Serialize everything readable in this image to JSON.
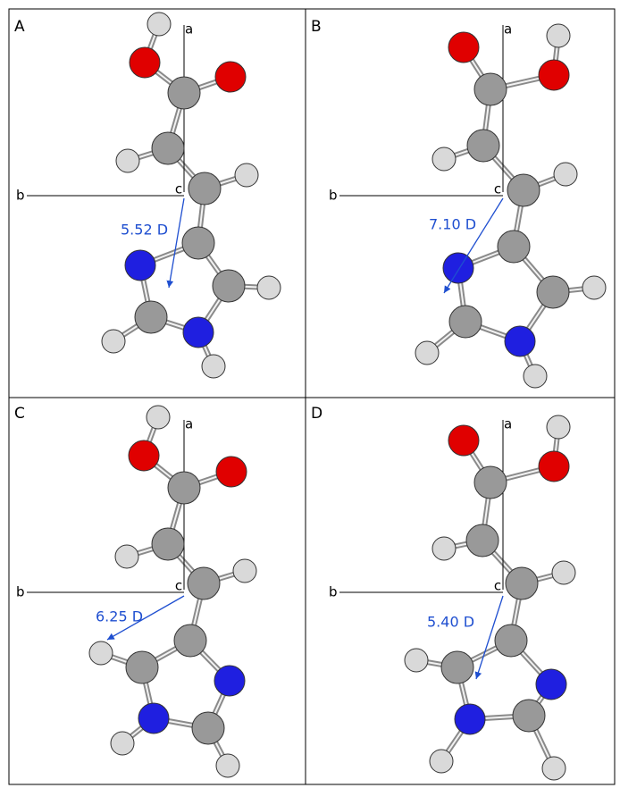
{
  "panels": [
    {
      "label": "A",
      "axis_a": "a",
      "axis_b": "b",
      "axis_c": "c",
      "dipole": "5.52 D"
    },
    {
      "label": "B",
      "axis_a": "a",
      "axis_b": "b",
      "axis_c": "c",
      "dipole": "7.10 D"
    },
    {
      "label": "C",
      "axis_a": "a",
      "axis_b": "b",
      "axis_c": "c",
      "dipole": "6.25 D"
    },
    {
      "label": "D",
      "axis_a": "a",
      "axis_b": "b",
      "axis_c": "c",
      "dipole": "5.40 D"
    }
  ]
}
